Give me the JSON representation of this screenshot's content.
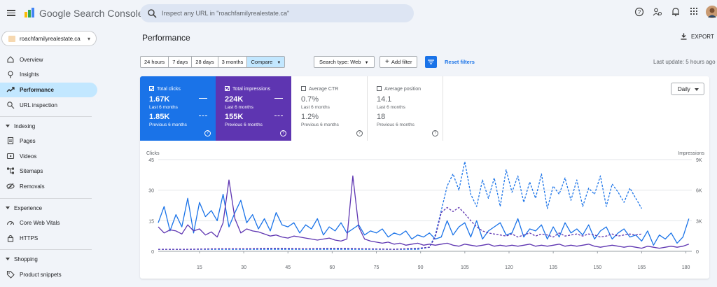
{
  "app": {
    "name": "Google Search Console"
  },
  "search": {
    "placeholder": "Inspect any URL in \"roachfamilyrealestate.ca\""
  },
  "top_icons": [
    "help-icon",
    "manage-users-icon",
    "notifications-icon",
    "apps-grid-icon",
    "avatar"
  ],
  "property": {
    "name": "roachfamilyrealestate.ca"
  },
  "sidebar": {
    "items": [
      {
        "label": "Overview",
        "icon": "home-icon"
      },
      {
        "label": "Insights",
        "icon": "lightbulb-icon"
      },
      {
        "label": "Performance",
        "icon": "trending-up-icon",
        "active": true
      },
      {
        "label": "URL inspection",
        "icon": "search-icon"
      }
    ],
    "indexing": {
      "title": "Indexing",
      "items": [
        {
          "label": "Pages",
          "icon": "pages-icon"
        },
        {
          "label": "Videos",
          "icon": "video-icon"
        },
        {
          "label": "Sitemaps",
          "icon": "sitemap-icon"
        },
        {
          "label": "Removals",
          "icon": "removals-icon"
        }
      ]
    },
    "experience": {
      "title": "Experience",
      "items": [
        {
          "label": "Core Web Vitals",
          "icon": "speed-icon"
        },
        {
          "label": "HTTPS",
          "icon": "lock-icon"
        }
      ]
    },
    "shopping": {
      "title": "Shopping",
      "items": [
        {
          "label": "Product snippets",
          "icon": "tag-icon"
        }
      ]
    }
  },
  "page": {
    "title": "Performance",
    "export_label": "EXPORT",
    "last_update": "Last update: 5 hours ago"
  },
  "filters": {
    "dates": [
      "24 hours",
      "7 days",
      "28 days",
      "3 months"
    ],
    "compare": "Compare",
    "search_type": "Search type: Web",
    "add_filter": "Add filter",
    "reset": "Reset filters"
  },
  "metrics": [
    {
      "label": "Total clicks",
      "value": "1.67K",
      "period": "Last 6 months",
      "prev_value": "1.85K",
      "prev_period": "Previous 6 months",
      "selected": true,
      "color": "#1a73e8"
    },
    {
      "label": "Total impressions",
      "value": "224K",
      "period": "Last 6 months",
      "prev_value": "155K",
      "prev_period": "Previous 6 months",
      "selected": true,
      "color": "#5e35b1"
    },
    {
      "label": "Average CTR",
      "value": "0.7%",
      "period": "Last 6 months",
      "prev_value": "1.2%",
      "prev_period": "Previous 6 months",
      "selected": false
    },
    {
      "label": "Average position",
      "value": "14.1",
      "period": "Last 6 months",
      "prev_value": "18",
      "prev_period": "Previous 6 months",
      "selected": false
    }
  ],
  "granularity": "Daily",
  "chart_data": {
    "type": "line",
    "ylabel_left": "Clicks",
    "ylabel_right": "Impressions",
    "y_left_ticks": [
      0,
      15,
      30,
      45
    ],
    "y_right_ticks": [
      "0",
      "3K",
      "6K",
      "9K"
    ],
    "x_ticks": [
      15,
      30,
      45,
      60,
      75,
      90,
      105,
      120,
      135,
      150,
      165,
      180
    ],
    "xlim": [
      1,
      182
    ],
    "ylim_left": [
      0,
      45
    ],
    "ylim_right": [
      0,
      9000
    ],
    "series": [
      {
        "name": "Clicks",
        "axis": "left",
        "style": "solid",
        "color": "#1a73e8",
        "x": [
          1,
          3,
          5,
          7,
          9,
          11,
          13,
          15,
          17,
          19,
          21,
          23,
          25,
          27,
          29,
          31,
          33,
          35,
          37,
          39,
          41,
          43,
          45,
          47,
          49,
          51,
          53,
          55,
          57,
          59,
          61,
          63,
          65,
          67,
          69,
          71,
          73,
          75,
          77,
          79,
          81,
          83,
          85,
          87,
          89,
          91,
          93,
          95,
          97,
          99,
          101,
          103,
          105,
          107,
          109,
          111,
          113,
          115,
          117,
          119,
          121,
          123,
          125,
          127,
          129,
          131,
          133,
          135,
          137,
          139,
          141,
          143,
          145,
          147,
          149,
          151,
          153,
          155,
          157,
          159,
          161,
          163,
          165,
          167,
          169,
          171,
          173,
          175,
          177,
          179,
          181
        ],
        "values": [
          14,
          22,
          10,
          18,
          12,
          26,
          9,
          24,
          17,
          20,
          15,
          28,
          12,
          19,
          25,
          14,
          18,
          11,
          16,
          10,
          19,
          13,
          12,
          14,
          9,
          13,
          11,
          16,
          8,
          12,
          10,
          14,
          9,
          11,
          13,
          8,
          10,
          9,
          11,
          7,
          9,
          8,
          10,
          6,
          8,
          7,
          9,
          6,
          7,
          15,
          8,
          12,
          14,
          7,
          15,
          6,
          10,
          12,
          14,
          8,
          9,
          16,
          7,
          11,
          10,
          13,
          6,
          12,
          7,
          14,
          9,
          11,
          8,
          13,
          6,
          10,
          12,
          6,
          9,
          11,
          7,
          8,
          5,
          10,
          3,
          8,
          6,
          9,
          4,
          7,
          16
        ]
      },
      {
        "name": "Impressions",
        "axis": "right",
        "style": "solid",
        "color": "#5e35b1",
        "x": [
          1,
          3,
          5,
          7,
          9,
          11,
          13,
          15,
          17,
          19,
          21,
          23,
          25,
          27,
          29,
          31,
          33,
          35,
          37,
          39,
          41,
          43,
          45,
          47,
          49,
          51,
          53,
          55,
          57,
          59,
          61,
          63,
          65,
          67,
          69,
          71,
          73,
          75,
          77,
          79,
          81,
          83,
          85,
          87,
          89,
          91,
          93,
          95,
          97,
          99,
          101,
          103,
          105,
          107,
          109,
          111,
          113,
          115,
          117,
          119,
          121,
          123,
          125,
          127,
          129,
          131,
          133,
          135,
          137,
          139,
          141,
          143,
          145,
          147,
          149,
          151,
          153,
          155,
          157,
          159,
          161,
          163,
          165,
          167,
          169,
          171,
          173,
          175,
          177,
          179,
          181
        ],
        "values": [
          2400,
          1800,
          2100,
          2000,
          1700,
          2600,
          2000,
          2200,
          1600,
          1900,
          1400,
          2800,
          7000,
          3200,
          1800,
          2200,
          2000,
          1900,
          1700,
          1500,
          1600,
          1400,
          1300,
          1500,
          1400,
          1300,
          1200,
          1100,
          1200,
          1300,
          1100,
          1000,
          1200,
          7400,
          2400,
          1200,
          1000,
          900,
          800,
          900,
          700,
          800,
          600,
          700,
          800,
          600,
          700,
          600,
          700,
          800,
          600,
          500,
          700,
          600,
          500,
          600,
          700,
          500,
          600,
          500,
          600,
          500,
          600,
          700,
          500,
          600,
          500,
          600,
          700,
          500,
          600,
          500,
          600,
          700,
          500,
          400,
          500,
          600,
          500,
          400,
          500,
          400,
          300,
          500,
          400,
          300,
          400,
          500,
          400,
          500,
          700
        ]
      },
      {
        "name": "Clicks (previous)",
        "axis": "left",
        "style": "dashed",
        "color": "#1a73e8",
        "x": [
          1,
          11,
          21,
          31,
          41,
          51,
          61,
          71,
          81,
          89,
          93,
          95,
          97,
          99,
          101,
          103,
          105,
          107,
          109,
          111,
          113,
          115,
          117,
          119,
          121,
          123,
          125,
          127,
          129,
          131,
          133,
          135,
          137,
          139,
          141,
          143,
          145,
          147,
          149,
          151,
          153,
          155,
          157,
          159,
          161,
          163,
          165
        ],
        "values": [
          1,
          1,
          1,
          1,
          1,
          1,
          1,
          1,
          1,
          1,
          2,
          8,
          20,
          32,
          38,
          30,
          44,
          28,
          22,
          35,
          26,
          36,
          22,
          40,
          29,
          37,
          24,
          34,
          26,
          38,
          21,
          32,
          28,
          36,
          25,
          35,
          22,
          31,
          28,
          37,
          22,
          33,
          29,
          24,
          31,
          26,
          21
        ]
      },
      {
        "name": "Impressions (previous)",
        "axis": "right",
        "style": "dashed",
        "color": "#5e35b1",
        "x": [
          1,
          11,
          21,
          31,
          41,
          51,
          61,
          71,
          81,
          89,
          93,
          95,
          97,
          99,
          101,
          103,
          105,
          107,
          109,
          111,
          113,
          115,
          117,
          119,
          121,
          123,
          125,
          127,
          129,
          131,
          133,
          135,
          137,
          139,
          141,
          143,
          145,
          147,
          149,
          151,
          153,
          155,
          157,
          159,
          161,
          163,
          165
        ],
        "values": [
          200,
          200,
          250,
          250,
          300,
          250,
          300,
          250,
          200,
          300,
          400,
          1400,
          3800,
          4300,
          3900,
          4300,
          3700,
          3000,
          2400,
          2000,
          1800,
          1700,
          1600,
          1500,
          1700,
          1400,
          1600,
          1800,
          1500,
          1700,
          1600,
          1400,
          1800,
          1500,
          1600,
          1700,
          1500,
          1700,
          1600,
          1400,
          1500,
          1700,
          1500,
          1600,
          1700,
          1600,
          1700
        ]
      }
    ]
  }
}
